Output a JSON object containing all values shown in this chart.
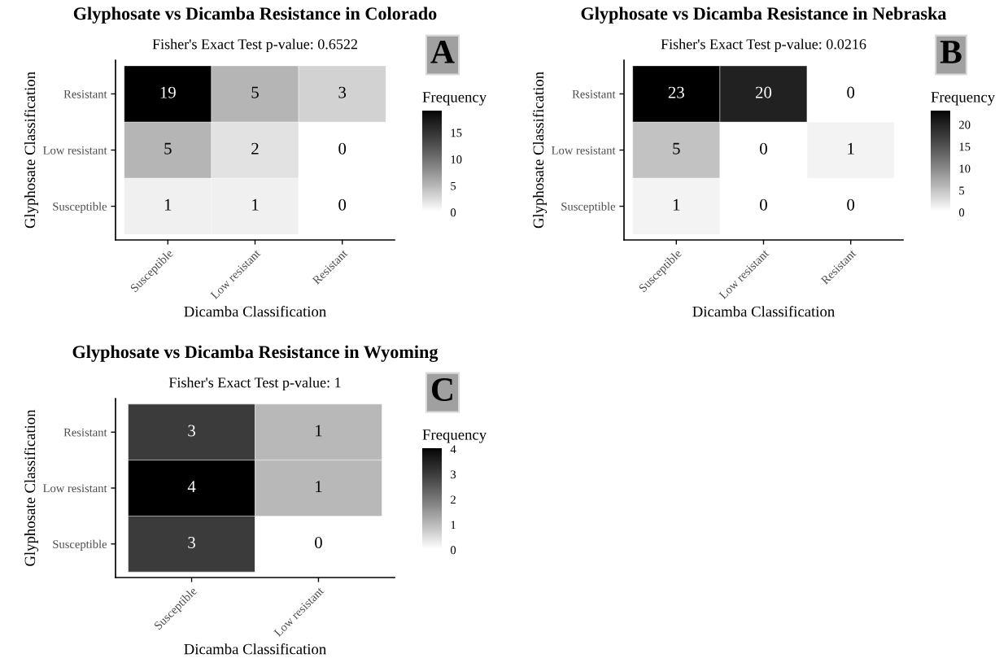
{
  "chart_data": [
    {
      "type": "heatmap",
      "title": "Glyphosate vs Dicamba Resistance in Colorado",
      "subtitle": "Fisher's Exact Test p-value: 0.6522",
      "xlabel": "Dicamba Classification",
      "ylabel": "Glyphosate Classification",
      "clabel": "Frequency",
      "categories": [
        "Susceptible",
        "Low resistant",
        "Resistant"
      ],
      "y_categories": [
        "Resistant",
        "Low resistant",
        "Susceptible"
      ],
      "cells": [
        [
          19,
          5,
          3
        ],
        [
          5,
          2,
          0
        ],
        [
          1,
          1,
          0
        ]
      ],
      "clim": [
        0,
        19
      ],
      "cticks": [
        0,
        5,
        10,
        15
      ],
      "data_labels": true,
      "annotations": [
        "A"
      ]
    },
    {
      "type": "heatmap",
      "title": "Glyphosate vs Dicamba Resistance in Nebraska",
      "subtitle": "Fisher's Exact Test p-value: 0.0216",
      "xlabel": "Dicamba Classification",
      "ylabel": "Glyphosate Classification",
      "clabel": "Frequency",
      "categories": [
        "Susceptible",
        "Low resistant",
        "Resistant"
      ],
      "y_categories": [
        "Resistant",
        "Low resistant",
        "Susceptible"
      ],
      "cells": [
        [
          23,
          20,
          0
        ],
        [
          5,
          0,
          1
        ],
        [
          1,
          0,
          0
        ]
      ],
      "clim": [
        0,
        23
      ],
      "cticks": [
        0,
        5,
        10,
        15,
        20
      ],
      "data_labels": true,
      "annotations": [
        "B"
      ]
    },
    {
      "type": "heatmap",
      "title": "Glyphosate vs Dicamba Resistance in Wyoming",
      "subtitle": "Fisher's Exact Test p-value: 1",
      "xlabel": "Dicamba Classification",
      "ylabel": "Glyphosate Classification",
      "clabel": "Frequency",
      "categories": [
        "Susceptible",
        "Low resistant"
      ],
      "y_categories": [
        "Resistant",
        "Low resistant",
        "Susceptible"
      ],
      "cells": [
        [
          3,
          1
        ],
        [
          4,
          1
        ],
        [
          3,
          0
        ]
      ],
      "clim": [
        0,
        4
      ],
      "cticks": [
        0,
        1,
        2,
        3,
        4
      ],
      "data_labels": true,
      "annotations": [
        "C"
      ]
    }
  ]
}
